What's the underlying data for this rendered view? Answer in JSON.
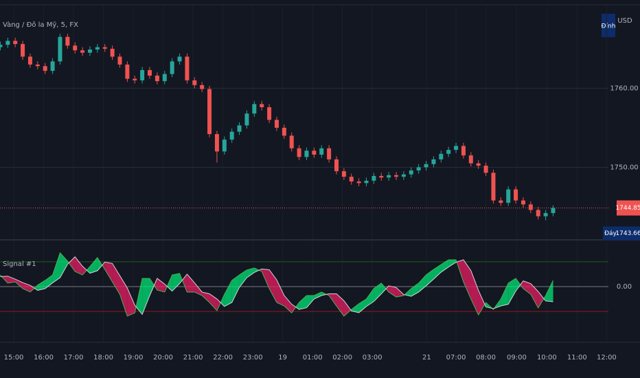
{
  "chart_data": [
    {
      "type": "candlestick",
      "title": "Vàng / Đô la Mỹ, 5, FX",
      "y_label": "USD",
      "x": [
        -0.45,
        -0.2,
        0.05,
        0.3,
        0.55,
        0.8,
        1.05,
        1.3,
        1.55,
        1.8,
        2.05,
        2.3,
        2.55,
        2.8,
        3.05,
        3.3,
        3.55,
        3.8,
        4.05,
        4.3,
        4.55,
        4.8,
        5.05,
        5.3,
        5.55,
        5.8,
        6.05,
        6.3,
        6.55,
        6.8,
        7.05,
        7.3,
        7.55,
        7.8,
        8.05,
        8.3,
        8.55,
        8.8,
        9.05,
        9.3,
        9.55,
        9.8,
        10.05,
        10.3,
        10.55,
        10.8,
        11.05,
        11.3,
        11.55,
        11.8,
        12.05,
        12.3,
        12.55,
        12.8,
        13.05,
        13.3,
        13.55,
        13.8,
        14.05,
        14.3,
        14.55,
        14.8,
        15.05,
        15.3,
        15.55,
        15.8,
        16.05,
        16.3,
        16.55,
        16.8,
        17.05,
        17.3,
        17.55,
        17.8,
        18.05
      ],
      "open": [
        1765.2,
        1765.5,
        1766.0,
        1765.6,
        1764.0,
        1763.0,
        1762.8,
        1762.2,
        1763.4,
        1766.5,
        1765.4,
        1764.8,
        1764.5,
        1764.9,
        1765.2,
        1765.0,
        1764.0,
        1763.0,
        1761.2,
        1761.0,
        1762.3,
        1761.6,
        1760.9,
        1761.8,
        1763.4,
        1764.0,
        1761.0,
        1760.4,
        1759.9,
        1754.2,
        1752.0,
        1753.5,
        1754.5,
        1755.3,
        1756.8,
        1758.0,
        1757.6,
        1756.0,
        1755.0,
        1754.0,
        1752.4,
        1751.3,
        1752.1,
        1751.6,
        1752.4,
        1751.0,
        1749.5,
        1748.8,
        1748.2,
        1748.0,
        1748.3,
        1748.9,
        1748.7,
        1749.0,
        1748.8,
        1749.1,
        1749.6,
        1750.0,
        1750.4,
        1751.0,
        1751.7,
        1752.2,
        1752.7,
        1751.5,
        1750.5,
        1750.2,
        1749.3,
        1745.8,
        1745.5,
        1747.2,
        1745.8,
        1745.3,
        1744.6,
        1743.8,
        1744.2
      ],
      "high": [
        1765.9,
        1766.4,
        1766.4,
        1766.0,
        1764.4,
        1763.4,
        1763.2,
        1763.8,
        1766.9,
        1766.9,
        1765.8,
        1765.2,
        1765.3,
        1765.6,
        1765.6,
        1765.4,
        1764.4,
        1763.4,
        1761.6,
        1762.7,
        1762.7,
        1762.0,
        1762.2,
        1763.8,
        1764.4,
        1764.4,
        1761.4,
        1760.8,
        1760.3,
        1754.6,
        1753.9,
        1754.9,
        1755.7,
        1757.2,
        1758.4,
        1758.4,
        1758.0,
        1756.4,
        1755.4,
        1754.4,
        1752.8,
        1752.5,
        1752.5,
        1752.8,
        1752.8,
        1751.4,
        1749.9,
        1749.2,
        1748.6,
        1748.7,
        1749.3,
        1749.3,
        1749.4,
        1749.4,
        1749.5,
        1750.0,
        1750.4,
        1750.8,
        1751.4,
        1752.1,
        1752.6,
        1753.1,
        1753.1,
        1751.9,
        1750.9,
        1750.6,
        1749.7,
        1746.2,
        1747.6,
        1747.6,
        1746.2,
        1745.7,
        1745.0,
        1744.6,
        1745.2
      ],
      "low": [
        1764.8,
        1765.1,
        1765.2,
        1763.6,
        1762.6,
        1762.4,
        1761.8,
        1761.8,
        1763.0,
        1765.0,
        1764.4,
        1764.1,
        1764.1,
        1764.5,
        1764.6,
        1763.6,
        1762.6,
        1760.8,
        1760.6,
        1760.6,
        1761.2,
        1760.5,
        1760.5,
        1761.4,
        1763.0,
        1760.6,
        1760.0,
        1759.5,
        1753.8,
        1750.6,
        1751.6,
        1753.1,
        1754.1,
        1754.9,
        1756.4,
        1757.2,
        1755.6,
        1754.6,
        1753.6,
        1752.0,
        1750.9,
        1750.9,
        1751.2,
        1751.2,
        1750.6,
        1749.1,
        1748.4,
        1747.8,
        1747.6,
        1747.6,
        1747.9,
        1748.3,
        1748.3,
        1748.4,
        1748.4,
        1748.7,
        1749.2,
        1749.6,
        1750.0,
        1750.6,
        1751.3,
        1751.8,
        1751.1,
        1750.1,
        1749.8,
        1748.9,
        1745.4,
        1745.1,
        1745.1,
        1745.4,
        1744.9,
        1744.2,
        1743.4,
        1743.3,
        1743.8
      ],
      "close": [
        1765.5,
        1766.0,
        1765.6,
        1764.0,
        1763.0,
        1762.8,
        1762.2,
        1763.4,
        1766.5,
        1765.4,
        1764.8,
        1764.5,
        1764.9,
        1765.2,
        1765.0,
        1764.0,
        1763.0,
        1761.2,
        1761.0,
        1762.3,
        1761.6,
        1760.9,
        1761.8,
        1763.4,
        1764.0,
        1761.0,
        1760.4,
        1759.9,
        1754.2,
        1752.0,
        1753.5,
        1754.5,
        1755.3,
        1756.8,
        1758.0,
        1757.6,
        1756.0,
        1755.0,
        1754.0,
        1752.4,
        1751.3,
        1752.1,
        1751.6,
        1752.4,
        1751.0,
        1749.5,
        1748.8,
        1748.2,
        1748.0,
        1748.3,
        1748.9,
        1748.7,
        1749.0,
        1748.8,
        1749.1,
        1749.6,
        1750.0,
        1750.4,
        1751.0,
        1751.7,
        1752.2,
        1752.7,
        1751.5,
        1750.5,
        1750.2,
        1749.3,
        1745.8,
        1745.5,
        1747.2,
        1745.8,
        1745.3,
        1744.6,
        1743.8,
        1744.2,
        1744.85
      ],
      "up_color": "#26a69a",
      "down_color": "#ef5350",
      "xlim": [
        -0.46,
        19.9
      ],
      "xticks": [
        {
          "value": 0,
          "label": "15:00"
        },
        {
          "value": 1,
          "label": "16:00"
        },
        {
          "value": 2,
          "label": "17:00"
        },
        {
          "value": 3,
          "label": "18:00"
        },
        {
          "value": 4,
          "label": "19:00"
        },
        {
          "value": 5,
          "label": "20:00"
        },
        {
          "value": 6,
          "label": "21:00"
        },
        {
          "value": 7,
          "label": "22:00"
        },
        {
          "value": 8,
          "label": "23:00"
        },
        {
          "value": 9,
          "label": "19"
        },
        {
          "value": 10,
          "label": "01:00"
        },
        {
          "value": 11,
          "label": "02:00"
        },
        {
          "value": 12,
          "label": "03:00"
        },
        {
          "value": 13.82,
          "label": "21"
        },
        {
          "value": 14.8,
          "label": "07:00"
        },
        {
          "value": 15.8,
          "label": "08:00"
        },
        {
          "value": 16.83,
          "label": "09:00"
        },
        {
          "value": 17.84,
          "label": "10:00"
        },
        {
          "value": 18.85,
          "label": "11:00"
        },
        {
          "value": 19.84,
          "label": "12:00"
        }
      ],
      "ylim": [
        1740.9,
        1770.3
      ],
      "yticks": [
        {
          "value": 1750,
          "label": "1750.00"
        },
        {
          "value": 1760,
          "label": "1760.00"
        }
      ],
      "grid": true,
      "last_price": {
        "value": 1744.85,
        "label": "1744.85",
        "color": "#ef5350"
      },
      "high_marker": {
        "text": "Đỉnh"
      },
      "low_marker": {
        "text": "Đáy",
        "value": 1743.66,
        "label": "1743.66"
      }
    },
    {
      "type": "oscillator",
      "title": "Signal #1",
      "series": [
        {
          "color": "#4caf50",
          "values": [
            0.47,
            0.14,
            0.19,
            -0.08,
            -0.22,
            0.06,
            0.25,
            0.47,
            1.36,
            1.03,
            0.61,
            0.47,
            0.81,
            1.17,
            0.69,
            0.19,
            -0.31,
            -1.19,
            -1.06,
            0.33,
            0.33,
            -0.14,
            -0.22,
            0.47,
            0.53,
            -0.22,
            -0.22,
            -0.36,
            -0.64,
            -0.97,
            -0.31,
            0.25,
            0.47,
            0.67,
            0.75,
            0.61,
            -0.08,
            -0.64,
            -0.78,
            -1.06,
            -0.64,
            -0.36,
            -0.36,
            -0.22,
            -0.36,
            -0.78,
            -1.19,
            -0.92,
            -0.69,
            -0.5,
            -0.08,
            0.14,
            -0.22,
            -0.42,
            -0.36,
            -0.08,
            0.14,
            0.47,
            0.69,
            0.89,
            1.08,
            1.08,
            0.19,
            -0.5,
            -1.14,
            -0.64,
            -0.92,
            -0.5,
            0.14,
            0.33,
            -0.08,
            -0.31,
            -0.86,
            -0.36,
            0.25
          ]
        },
        {
          "color": "#d1d4dc",
          "values": [
            0.4,
            0.42,
            0.3,
            0.16,
            0.05,
            -0.15,
            -0.08,
            0.15,
            0.36,
            0.9,
            1.2,
            0.82,
            0.54,
            0.64,
            0.99,
            0.93,
            0.44,
            -0.06,
            -0.75,
            -1.12,
            -0.36,
            0.33,
            0.1,
            -0.18,
            0.12,
            0.5,
            0.15,
            -0.22,
            -0.29,
            -0.5,
            -0.8,
            -0.64,
            -0.03,
            0.36,
            0.57,
            0.71,
            0.68,
            0.27,
            -0.36,
            -0.71,
            -0.92,
            -0.85,
            -0.5,
            -0.36,
            -0.29,
            -0.29,
            -0.57,
            -0.98,
            -1.05,
            -0.8,
            -0.6,
            -0.29,
            0.03,
            -0.04,
            -0.32,
            -0.39,
            -0.22,
            0.03,
            0.3,
            0.58,
            0.79,
            0.98,
            1.08,
            0.64,
            -0.15,
            -0.82,
            -0.89,
            -0.78,
            -0.71,
            -0.18,
            0.23,
            0.12,
            -0.2,
            -0.58,
            -0.61
          ]
        }
      ],
      "fill_up_color": "#00e676",
      "fill_down_color": "#e91e63",
      "ylim": [
        -1.8,
        1.8
      ],
      "yticks": [
        {
          "value": 0,
          "label": "0.00"
        }
      ],
      "levels": [
        {
          "value": 1,
          "color": "#1b5e20"
        },
        {
          "value": -1,
          "color": "#8b1a1a"
        }
      ]
    }
  ]
}
